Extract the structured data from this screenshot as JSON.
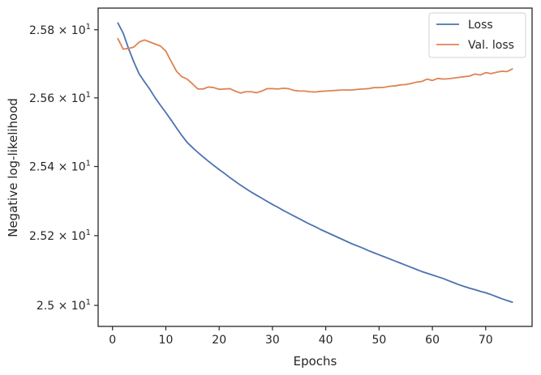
{
  "chart_data": {
    "type": "line",
    "xlabel": "Epochs",
    "ylabel": "Negative log-likelihood",
    "xlim": [
      -2.7,
      78.7
    ],
    "ylim": [
      24.94,
      25.864
    ],
    "y_scale": "log",
    "grid": false,
    "legend_position": "top-right",
    "x_ticks": [
      {
        "value": 0,
        "label": "0"
      },
      {
        "value": 10,
        "label": "10"
      },
      {
        "value": 20,
        "label": "20"
      },
      {
        "value": 30,
        "label": "30"
      },
      {
        "value": 40,
        "label": "40"
      },
      {
        "value": 50,
        "label": "50"
      },
      {
        "value": 60,
        "label": "60"
      },
      {
        "value": 70,
        "label": "70"
      }
    ],
    "y_ticks": [
      {
        "value": 25.0,
        "mantissa": "2.5",
        "sign": "×",
        "base": "10",
        "exp": "1"
      },
      {
        "value": 25.2,
        "mantissa": "2.52",
        "sign": "×",
        "base": "10",
        "exp": "1"
      },
      {
        "value": 25.4,
        "mantissa": "2.54",
        "sign": "×",
        "base": "10",
        "exp": "1"
      },
      {
        "value": 25.6,
        "mantissa": "2.56",
        "sign": "×",
        "base": "10",
        "exp": "1"
      },
      {
        "value": 25.8,
        "mantissa": "2.58",
        "sign": "×",
        "base": "10",
        "exp": "1"
      }
    ],
    "series": [
      {
        "name": "Loss",
        "color": "#4c72b0",
        "points": [
          [
            1,
            25.82
          ],
          [
            2,
            25.79
          ],
          [
            3,
            25.745
          ],
          [
            4,
            25.705
          ],
          [
            5,
            25.67
          ],
          [
            6,
            25.647
          ],
          [
            7,
            25.625
          ],
          [
            8,
            25.6
          ],
          [
            9,
            25.578
          ],
          [
            10,
            25.557
          ],
          [
            11,
            25.535
          ],
          [
            12,
            25.512
          ],
          [
            13,
            25.49
          ],
          [
            14,
            25.47
          ],
          [
            15,
            25.455
          ],
          [
            16,
            25.441
          ],
          [
            17,
            25.428
          ],
          [
            18,
            25.415
          ],
          [
            19,
            25.403
          ],
          [
            20,
            25.391
          ],
          [
            21,
            25.38
          ],
          [
            22,
            25.368
          ],
          [
            23,
            25.357
          ],
          [
            24,
            25.346
          ],
          [
            25,
            25.336
          ],
          [
            26,
            25.326
          ],
          [
            27,
            25.317
          ],
          [
            28,
            25.308
          ],
          [
            29,
            25.299
          ],
          [
            30,
            25.29
          ],
          [
            31,
            25.282
          ],
          [
            32,
            25.273
          ],
          [
            33,
            25.265
          ],
          [
            34,
            25.257
          ],
          [
            35,
            25.249
          ],
          [
            36,
            25.241
          ],
          [
            37,
            25.233
          ],
          [
            38,
            25.226
          ],
          [
            39,
            25.218
          ],
          [
            40,
            25.211
          ],
          [
            41,
            25.204
          ],
          [
            42,
            25.197
          ],
          [
            43,
            25.19
          ],
          [
            44,
            25.183
          ],
          [
            45,
            25.176
          ],
          [
            46,
            25.17
          ],
          [
            47,
            25.164
          ],
          [
            48,
            25.157
          ],
          [
            49,
            25.151
          ],
          [
            50,
            25.145
          ],
          [
            51,
            25.139
          ],
          [
            52,
            25.133
          ],
          [
            53,
            25.127
          ],
          [
            54,
            25.121
          ],
          [
            55,
            25.115
          ],
          [
            56,
            25.109
          ],
          [
            57,
            25.103
          ],
          [
            58,
            25.097
          ],
          [
            59,
            25.092
          ],
          [
            60,
            25.087
          ],
          [
            61,
            25.082
          ],
          [
            62,
            25.077
          ],
          [
            63,
            25.071
          ],
          [
            64,
            25.065
          ],
          [
            65,
            25.059
          ],
          [
            66,
            25.054
          ],
          [
            67,
            25.049
          ],
          [
            68,
            25.045
          ],
          [
            69,
            25.04
          ],
          [
            70,
            25.036
          ],
          [
            71,
            25.031
          ],
          [
            72,
            25.025
          ],
          [
            73,
            25.019
          ],
          [
            74,
            25.014
          ],
          [
            75,
            25.009
          ]
        ]
      },
      {
        "name": "Val. loss",
        "color": "#dd8452",
        "points": [
          [
            1,
            25.774
          ],
          [
            2,
            25.743
          ],
          [
            3,
            25.745
          ],
          [
            4,
            25.749
          ],
          [
            5,
            25.764
          ],
          [
            6,
            25.77
          ],
          [
            7,
            25.764
          ],
          [
            8,
            25.758
          ],
          [
            9,
            25.752
          ],
          [
            10,
            25.737
          ],
          [
            11,
            25.707
          ],
          [
            12,
            25.678
          ],
          [
            13,
            25.662
          ],
          [
            14,
            25.655
          ],
          [
            15,
            25.641
          ],
          [
            16,
            25.626
          ],
          [
            17,
            25.626
          ],
          [
            18,
            25.632
          ],
          [
            19,
            25.63
          ],
          [
            20,
            25.625
          ],
          [
            21,
            25.626
          ],
          [
            22,
            25.627
          ],
          [
            23,
            25.62
          ],
          [
            24,
            25.614
          ],
          [
            25,
            25.618
          ],
          [
            26,
            25.618
          ],
          [
            27,
            25.615
          ],
          [
            28,
            25.62
          ],
          [
            29,
            25.627
          ],
          [
            30,
            25.627
          ],
          [
            31,
            25.626
          ],
          [
            32,
            25.628
          ],
          [
            33,
            25.627
          ],
          [
            34,
            25.622
          ],
          [
            35,
            25.62
          ],
          [
            36,
            25.62
          ],
          [
            37,
            25.618
          ],
          [
            38,
            25.617
          ],
          [
            39,
            25.619
          ],
          [
            40,
            25.62
          ],
          [
            41,
            25.621
          ],
          [
            42,
            25.622
          ],
          [
            43,
            25.623
          ],
          [
            44,
            25.623
          ],
          [
            45,
            25.623
          ],
          [
            46,
            25.625
          ],
          [
            47,
            25.626
          ],
          [
            48,
            25.627
          ],
          [
            49,
            25.63
          ],
          [
            50,
            25.63
          ],
          [
            51,
            25.631
          ],
          [
            52,
            25.634
          ],
          [
            53,
            25.635
          ],
          [
            54,
            25.638
          ],
          [
            55,
            25.639
          ],
          [
            56,
            25.642
          ],
          [
            57,
            25.646
          ],
          [
            58,
            25.648
          ],
          [
            59,
            25.655
          ],
          [
            60,
            25.651
          ],
          [
            61,
            25.657
          ],
          [
            62,
            25.655
          ],
          [
            63,
            25.656
          ],
          [
            64,
            25.658
          ],
          [
            65,
            25.66
          ],
          [
            66,
            25.662
          ],
          [
            67,
            25.664
          ],
          [
            68,
            25.67
          ],
          [
            69,
            25.667
          ],
          [
            70,
            25.674
          ],
          [
            71,
            25.671
          ],
          [
            72,
            25.675
          ],
          [
            73,
            25.678
          ],
          [
            74,
            25.677
          ],
          [
            75,
            25.685
          ]
        ]
      }
    ]
  }
}
